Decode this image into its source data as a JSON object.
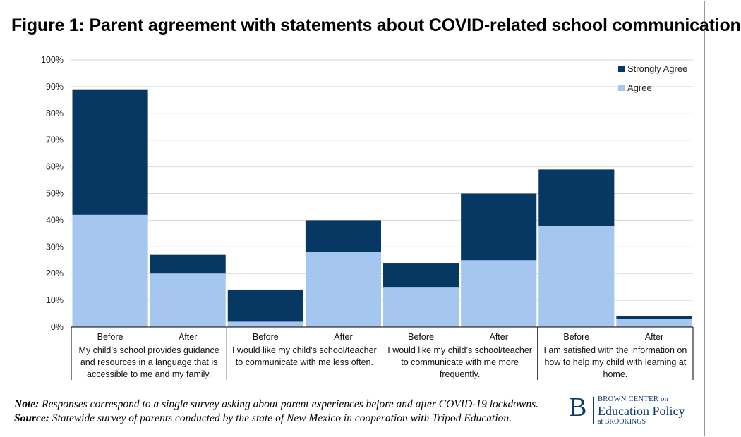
{
  "title": "Figure 1: Parent agreement with statements about COVID-related school communication",
  "note_label": "Note:",
  "note_text": " Responses correspond to a single survey asking about parent experiences before and after COVID-19 lockdowns.",
  "source_label": "Source:",
  "source_text": " Statewide survey of parents conducted by the state of New Mexico in cooperation with Tripod Education.",
  "logo": {
    "mark": "B",
    "line1": "BROWN CENTER on",
    "line2": "Education Policy",
    "line3": "at BROOKINGS"
  },
  "colors": {
    "strongly_agree": "#073763",
    "agree": "#a4c6ef",
    "gridline": "#d9d9d9",
    "axis": "#000000"
  },
  "chart_data": {
    "type": "bar",
    "stacked": true,
    "title": "Figure 1: Parent agreement with statements about COVID-related school communication",
    "ylim": [
      0,
      100
    ],
    "yticks": [
      "0%",
      "10%",
      "20%",
      "30%",
      "40%",
      "50%",
      "60%",
      "70%",
      "80%",
      "90%",
      "100%"
    ],
    "grid": true,
    "legend_position": "top-right",
    "categories": [
      "Before",
      "After",
      "Before",
      "After",
      "Before",
      "After",
      "Before",
      "After"
    ],
    "groups": [
      {
        "label": [
          "My child’s school provides guidance",
          "and resources in a language that is",
          "accessible to me and my family."
        ]
      },
      {
        "label": [
          "I would like my child’s school/teacher",
          "to communicate with me less often."
        ]
      },
      {
        "label": [
          "I would like my child’s school/teacher",
          "to communicate with me more",
          "frequently."
        ]
      },
      {
        "label": [
          "I am satisfied with the information on",
          "how to help my child with learning at",
          "home."
        ]
      }
    ],
    "series": [
      {
        "name": "Agree",
        "values": [
          42,
          20,
          2,
          28,
          15,
          25,
          38,
          3
        ]
      },
      {
        "name": "Strongly Agree",
        "values": [
          47,
          7,
          12,
          12,
          9,
          25,
          21,
          1
        ]
      }
    ],
    "legend": [
      "Strongly Agree",
      "Agree"
    ]
  }
}
